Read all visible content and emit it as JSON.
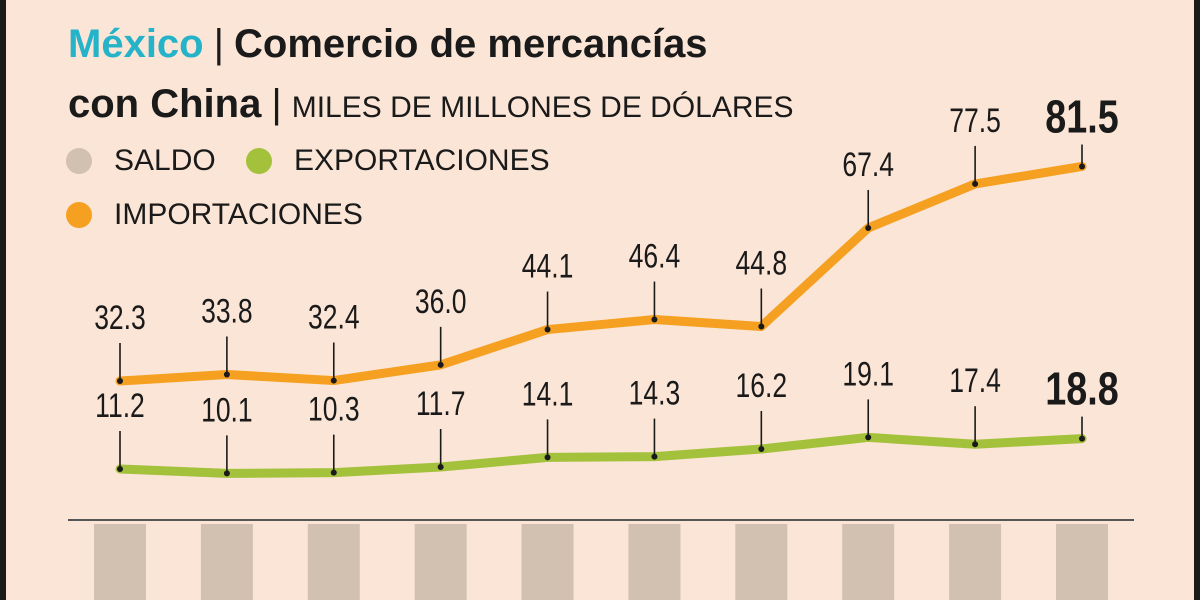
{
  "header": {
    "country": "México",
    "title_rest": "Comercio de mercancías",
    "title_line2": "con China",
    "units": "MILES DE MILLONES DE DÓLARES",
    "separator": "|"
  },
  "colors": {
    "background": "#fbe5d6",
    "saldo": "#d2c0b0",
    "exportaciones": "#a3c13a",
    "importaciones": "#f5a020",
    "country": "#24b3c8",
    "text": "#1a1a1a"
  },
  "chart_data": {
    "type": "line",
    "title": "Comercio de mercancías con China",
    "ylabel": "MILES DE MILLONES DE DÓLARES",
    "legend": [
      "SALDO",
      "EXPORTACIONES",
      "IMPORTACIONES"
    ],
    "legend_position": "top-left",
    "grid": false,
    "series": [
      {
        "name": "IMPORTACIONES",
        "color": "#f5a020",
        "values": [
          32.3,
          33.8,
          32.4,
          36.0,
          44.1,
          46.4,
          44.8,
          67.4,
          77.5,
          81.5
        ],
        "labels": [
          "32.3",
          "33.8",
          "32.4",
          "36.0",
          "44.1",
          "46.4",
          "44.8",
          "67.4",
          "77.5",
          "81.5"
        ]
      },
      {
        "name": "EXPORTACIONES",
        "color": "#a3c13a",
        "values": [
          11.2,
          10.1,
          10.3,
          11.7,
          14.1,
          14.3,
          16.2,
          19.1,
          17.4,
          18.8
        ],
        "labels": [
          "11.2",
          "10.1",
          "10.3",
          "11.7",
          "14.1",
          "14.3",
          "16.2",
          "19.1",
          "17.4",
          "18.8"
        ]
      }
    ],
    "saldo_series": {
      "name": "SALDO",
      "color": "#d2c0b0",
      "bar_count": 10
    }
  }
}
